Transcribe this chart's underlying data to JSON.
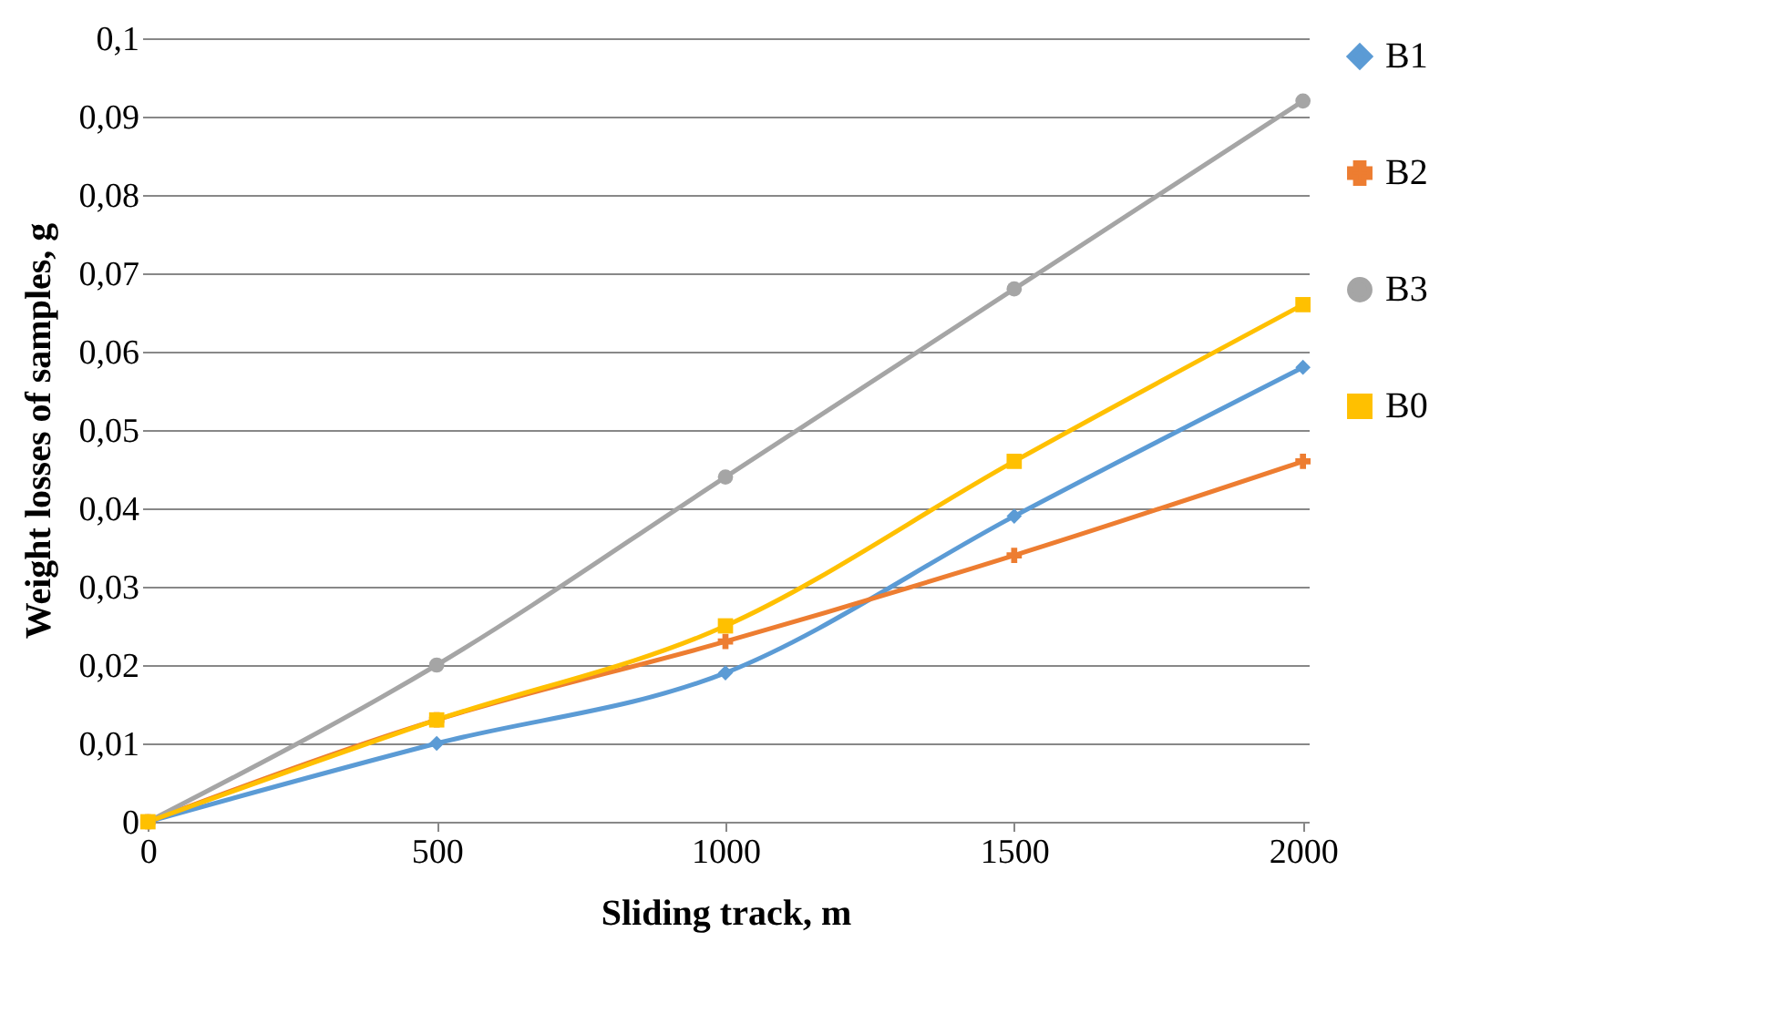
{
  "chart_data": {
    "type": "line",
    "xlabel": "Sliding track, m",
    "ylabel": "Weight losses of samples, g",
    "categories": [
      "0",
      "500",
      "1000",
      "1500",
      "2000"
    ],
    "series": [
      {
        "name": "B1",
        "color": "#5b9bd5",
        "marker": "diamond",
        "values": [
          0,
          0.01,
          0.019,
          0.039,
          0.058
        ]
      },
      {
        "name": "B2",
        "color": "#ed7d31",
        "marker": "cross",
        "values": [
          0,
          0.013,
          0.023,
          0.034,
          0.046
        ]
      },
      {
        "name": "B3",
        "color": "#a5a5a5",
        "marker": "circle",
        "values": [
          0,
          0.02,
          0.044,
          0.068,
          0.092
        ]
      },
      {
        "name": "B0",
        "color": "#ffc000",
        "marker": "square",
        "values": [
          0,
          0.013,
          0.025,
          0.046,
          0.066
        ]
      }
    ],
    "ylim": [
      0,
      0.1
    ],
    "yticks": [
      0,
      {
        "value": 0.01,
        "label": "0,01"
      },
      {
        "value": 0.02,
        "label": "0,02"
      },
      {
        "value": 0.03,
        "label": "0,03"
      },
      {
        "value": 0.04,
        "label": "0,04"
      },
      {
        "value": 0.05,
        "label": "0,05"
      },
      {
        "value": 0.06,
        "label": "0,06"
      },
      {
        "value": 0.07,
        "label": "0,07"
      },
      {
        "value": 0.08,
        "label": "0,08"
      },
      {
        "value": 0.09,
        "label": "0,09"
      },
      {
        "value": 0.1,
        "label": "0,1"
      }
    ],
    "grid": "y",
    "legend": "right",
    "line_style": "solid"
  }
}
